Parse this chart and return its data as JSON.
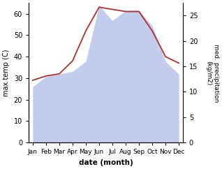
{
  "months": [
    "Jan",
    "Feb",
    "Mar",
    "Apr",
    "May",
    "Jun",
    "Jul",
    "Aug",
    "Sep",
    "Oct",
    "Nov",
    "Dec"
  ],
  "month_positions": [
    1,
    2,
    3,
    4,
    5,
    6,
    7,
    8,
    9,
    10,
    11,
    12
  ],
  "temp_max": [
    29,
    31,
    32,
    38,
    52,
    63,
    62,
    61,
    61,
    52,
    40,
    37
  ],
  "precip": [
    11,
    13,
    13.5,
    14,
    16,
    27,
    24,
    26,
    26,
    23,
    16,
    13.5
  ],
  "temp_ylim": [
    0,
    65
  ],
  "precip_ylim": [
    0,
    27.5
  ],
  "temp_yticks": [
    0,
    10,
    20,
    30,
    40,
    50,
    60
  ],
  "precip_yticks": [
    0,
    5,
    10,
    15,
    20,
    25
  ],
  "fill_color": "#b0bce8",
  "fill_alpha": 0.75,
  "line_color": "#b03030",
  "line_width": 1.3,
  "xlabel": "date (month)",
  "ylabel_left": "max temp (C)",
  "ylabel_right": "med. precipitation\n(kg/m2)",
  "figsize": [
    3.18,
    2.42
  ],
  "dpi": 100
}
